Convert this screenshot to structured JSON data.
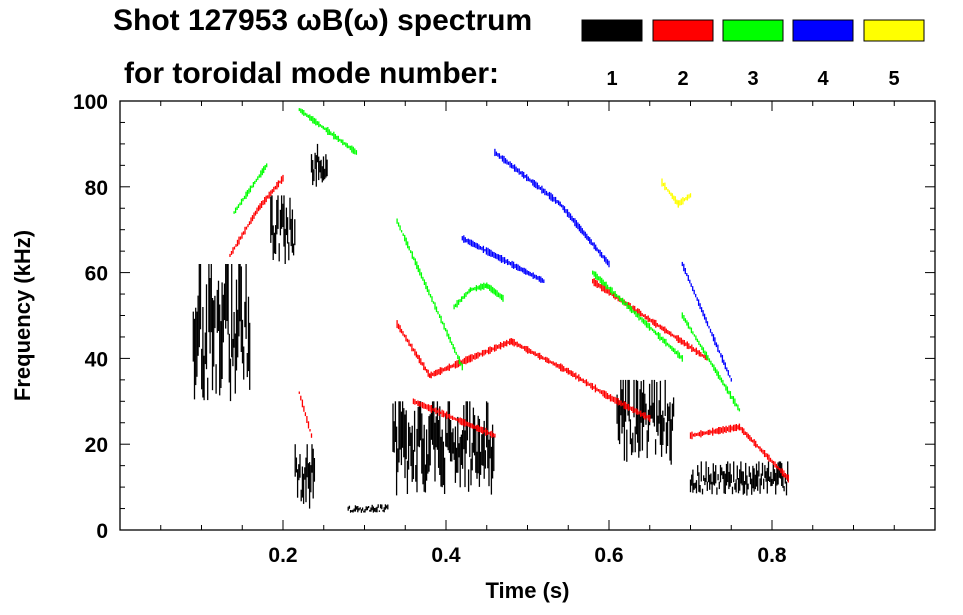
{
  "chart_data": {
    "type": "scatter",
    "title_line1": "Shot 127953 ωB(ω) spectrum",
    "title_line2": "for toroidal mode number:",
    "xlabel": "Time (s)",
    "ylabel": "Frequency (kHz)",
    "xlim": [
      0.0,
      1.0
    ],
    "ylim": [
      0,
      100
    ],
    "x_ticks": [
      0.2,
      0.4,
      0.6,
      0.8
    ],
    "x_tick_labels": [
      "0.2",
      "0.4",
      "0.6",
      "0.8"
    ],
    "y_ticks": [
      0,
      20,
      40,
      60,
      80,
      100
    ],
    "y_tick_labels": [
      "0",
      "20",
      "40",
      "60",
      "80",
      "100"
    ],
    "grid": false,
    "legend": [
      {
        "label": "1",
        "color": "#000000"
      },
      {
        "label": "2",
        "color": "#ff0000"
      },
      {
        "label": "3",
        "color": "#00ff00"
      },
      {
        "label": "4",
        "color": "#0000ff"
      },
      {
        "label": "5",
        "color": "#ffff00"
      }
    ],
    "series": [
      {
        "name": "1",
        "color": "#000000",
        "regions": [
          {
            "t_start": 0.09,
            "t_end": 0.16,
            "f_low": 30,
            "f_high": 62
          },
          {
            "t_start": 0.185,
            "t_end": 0.215,
            "f_low": 60,
            "f_high": 78
          },
          {
            "t_start": 0.215,
            "t_end": 0.24,
            "f_low": 4,
            "f_high": 20
          },
          {
            "t_start": 0.235,
            "t_end": 0.255,
            "f_low": 80,
            "f_high": 90
          },
          {
            "t_start": 0.28,
            "t_end": 0.33,
            "f_low": 4,
            "f_high": 6
          },
          {
            "t_start": 0.335,
            "t_end": 0.46,
            "f_low": 8,
            "f_high": 30
          },
          {
            "t_start": 0.61,
            "t_end": 0.68,
            "f_low": 15,
            "f_high": 35
          },
          {
            "t_start": 0.7,
            "t_end": 0.82,
            "f_low": 8,
            "f_high": 16
          }
        ]
      },
      {
        "name": "2",
        "color": "#ff0000",
        "ridges": [
          {
            "t": [
              0.135,
              0.17,
              0.2
            ],
            "f": [
              64,
              75,
              82
            ]
          },
          {
            "t": [
              0.22,
              0.235
            ],
            "f": [
              32,
              22
            ]
          },
          {
            "t": [
              0.34,
              0.38,
              0.43,
              0.48,
              0.55,
              0.6,
              0.65
            ],
            "f": [
              48,
              36,
              40,
              44,
              37,
              31,
              26
            ]
          },
          {
            "t": [
              0.36,
              0.46
            ],
            "f": [
              30,
              22
            ]
          },
          {
            "t": [
              0.58,
              0.72
            ],
            "f": [
              58,
              40
            ]
          },
          {
            "t": [
              0.7,
              0.76,
              0.82
            ],
            "f": [
              22,
              24,
              12
            ]
          }
        ]
      },
      {
        "name": "3",
        "color": "#00ff00",
        "ridges": [
          {
            "t": [
              0.14,
              0.18
            ],
            "f": [
              74,
              85
            ]
          },
          {
            "t": [
              0.22,
              0.29
            ],
            "f": [
              98,
              88
            ]
          },
          {
            "t": [
              0.34,
              0.42
            ],
            "f": [
              72,
              38
            ]
          },
          {
            "t": [
              0.41,
              0.43,
              0.45,
              0.47
            ],
            "f": [
              52,
              56,
              57,
              54
            ]
          },
          {
            "t": [
              0.58,
              0.69
            ],
            "f": [
              60,
              40
            ]
          },
          {
            "t": [
              0.69,
              0.76
            ],
            "f": [
              50,
              28
            ]
          }
        ]
      },
      {
        "name": "4",
        "color": "#0000ff",
        "ridges": [
          {
            "t": [
              0.46,
              0.54,
              0.6
            ],
            "f": [
              88,
              76,
              62
            ]
          },
          {
            "t": [
              0.42,
              0.52
            ],
            "f": [
              68,
              58
            ]
          },
          {
            "t": [
              0.69,
              0.75
            ],
            "f": [
              62,
              35
            ]
          }
        ]
      },
      {
        "name": "5",
        "color": "#ffff00",
        "ridges": [
          {
            "t": [
              0.665,
              0.685,
              0.7
            ],
            "f": [
              81,
              76,
              78
            ]
          }
        ]
      }
    ]
  }
}
